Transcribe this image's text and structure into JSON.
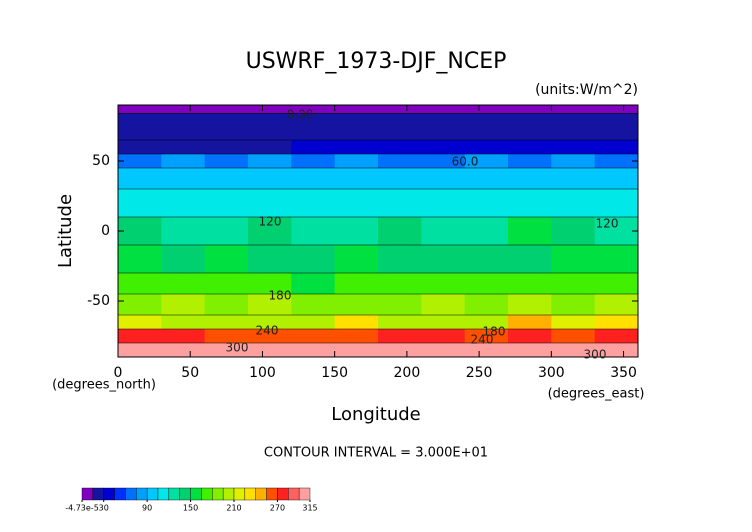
{
  "chart_data": {
    "type": "contour",
    "title": "USWRF_1973-DJF_NCEP",
    "units": "(units:W/m^2)",
    "x_label": "Longitude",
    "y_label": "Latitude",
    "x_unit": "(degrees_east)",
    "y_unit": "(degrees_north)",
    "footnote": "CONTOUR INTERVAL = 3.000E+01",
    "xlim": [
      0,
      360
    ],
    "ylim": [
      -90,
      90
    ],
    "xticks": [
      0,
      50,
      100,
      150,
      200,
      250,
      300,
      350
    ],
    "yticks": [
      -50,
      0,
      50
    ],
    "x_edges": [
      0,
      30,
      60,
      90,
      120,
      150,
      180,
      210,
      240,
      270,
      300,
      330,
      360
    ],
    "y_edges": [
      90,
      84,
      65,
      55,
      45,
      30,
      10,
      -10,
      -30,
      -45,
      -60,
      -70,
      -80,
      -90
    ],
    "z": [
      [
        5,
        5,
        5,
        5,
        5,
        5,
        5,
        5,
        5,
        5,
        5,
        5
      ],
      [
        22,
        22,
        22,
        22,
        22,
        22,
        22,
        22,
        22,
        22,
        22,
        22
      ],
      [
        25,
        25,
        25,
        25,
        40,
        40,
        40,
        40,
        40,
        40,
        40,
        40
      ],
      [
        70,
        75,
        70,
        75,
        70,
        75,
        70,
        70,
        75,
        70,
        75,
        70
      ],
      [
        95,
        90,
        100,
        95,
        95,
        90,
        95,
        100,
        95,
        95,
        90,
        100
      ],
      [
        110,
        115,
        110,
        115,
        110,
        105,
        110,
        115,
        110,
        110,
        115,
        110
      ],
      [
        145,
        130,
        130,
        135,
        125,
        130,
        135,
        125,
        130,
        160,
        140,
        130
      ],
      [
        160,
        140,
        150,
        145,
        140,
        150,
        145,
        140,
        145,
        135,
        155,
        150
      ],
      [
        170,
        165,
        170,
        165,
        160,
        165,
        170,
        165,
        165,
        170,
        165,
        170
      ],
      [
        190,
        195,
        190,
        195,
        190,
        185,
        190,
        195,
        190,
        195,
        190,
        195
      ],
      [
        215,
        205,
        205,
        205,
        205,
        225,
        205,
        205,
        205,
        240,
        220,
        235
      ],
      [
        270,
        270,
        265,
        265,
        265,
        260,
        270,
        270,
        265,
        270,
        265,
        270
      ],
      [
        305,
        300,
        305,
        305,
        305,
        300,
        305,
        305,
        305,
        300,
        305,
        305
      ]
    ],
    "contour_labels": [
      "0.00",
      "60.0",
      "120",
      "120",
      "180",
      "180",
      "240",
      "240",
      "300",
      "300"
    ],
    "colorbar": {
      "levels": [
        0,
        15,
        30,
        45,
        60,
        75,
        90,
        105,
        120,
        135,
        150,
        165,
        180,
        195,
        210,
        225,
        240,
        255,
        270,
        285,
        300,
        315
      ],
      "colors": [
        "#8000c0",
        "#1414a0",
        "#0000d0",
        "#0030ff",
        "#0070ff",
        "#00a0ff",
        "#00c8ff",
        "#00e8e8",
        "#00e0a0",
        "#00d070",
        "#00e040",
        "#40f000",
        "#80f000",
        "#b0f000",
        "#e0f000",
        "#ffe000",
        "#ffb000",
        "#ff5000",
        "#ff2020",
        "#ff6060",
        "#ffa0a0"
      ],
      "ticks": [
        {
          "value": -4.73e-05,
          "label": "-4.73e-5"
        },
        30,
        90,
        150,
        210,
        270,
        315
      ]
    }
  }
}
